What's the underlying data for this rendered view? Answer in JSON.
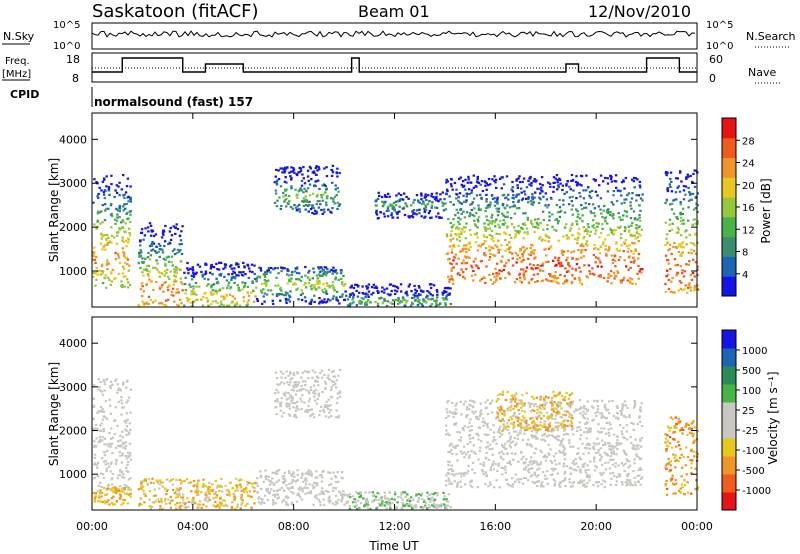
{
  "header": {
    "station": "Saskatoon (fitACF)",
    "beam": "Beam 01",
    "date": "12/Nov/2010"
  },
  "param_panel": {
    "nsky_label": "N.Sky",
    "nsky_ticks": [
      "10^5",
      "10^0"
    ],
    "nsearch_label": "N.Search",
    "nsearch_ticks": [
      "10^5",
      "10^0"
    ],
    "freq_label_line1": "Freq.",
    "freq_label_line2": "[MHz]",
    "freq_ticks": [
      "18",
      "8"
    ],
    "nave_label": "Nave",
    "nave_ticks": [
      "60",
      "0"
    ],
    "cpid_label": "CPID",
    "cpid_value": "normalsound (fast) 157"
  },
  "colors": {
    "power_scale": [
      "#1414e6",
      "#1e64b4",
      "#3c8c6e",
      "#46b446",
      "#96c83c",
      "#e6c81e",
      "#f09628",
      "#f05a1e",
      "#e61414"
    ],
    "velocity_scale": [
      "#e61414",
      "#f05a1e",
      "#f09628",
      "#e6c81e",
      "#c8c8c0",
      "#c8c8c0",
      "#46b446",
      "#2e8b57",
      "#1e64b4",
      "#1414e6"
    ],
    "ground_scatter": "#c8c8c0"
  },
  "chart_data": [
    {
      "type": "heatmap",
      "name": "power",
      "ylabel": "Slant Range [km]",
      "yticks": [
        "1000",
        "2000",
        "3000",
        "4000"
      ],
      "ylim": [
        180,
        4600
      ],
      "xlim": [
        "00:00",
        "24:00"
      ],
      "colorbar_label": "Power [dB]",
      "colorbar_ticks": [
        "28",
        "24",
        "20",
        "16",
        "12",
        "8",
        "4"
      ],
      "colorbar_range": [
        0,
        32
      ],
      "scatter_regions": [
        {
          "t0": 0.0,
          "t1": 1.5,
          "r0": 600,
          "r1": 3200,
          "peak_range": 1300,
          "peak_db": 24
        },
        {
          "t0": 1.8,
          "t1": 3.6,
          "r0": 200,
          "r1": 2100,
          "peak_range": 500,
          "peak_db": 26
        },
        {
          "t0": 3.6,
          "t1": 6.5,
          "r0": 200,
          "r1": 1200,
          "peak_range": 400,
          "peak_db": 22
        },
        {
          "t0": 6.5,
          "t1": 10.0,
          "r0": 250,
          "r1": 1100,
          "peak_range": 700,
          "peak_db": 18
        },
        {
          "t0": 7.2,
          "t1": 9.8,
          "r0": 2300,
          "r1": 3400,
          "peak_range": 2700,
          "peak_db": 14
        },
        {
          "t0": 10.0,
          "t1": 14.2,
          "r0": 200,
          "r1": 700,
          "peak_range": 300,
          "peak_db": 14
        },
        {
          "t0": 11.2,
          "t1": 14.0,
          "r0": 2200,
          "r1": 2800,
          "peak_range": 2500,
          "peak_db": 12
        },
        {
          "t0": 14.0,
          "t1": 21.8,
          "r0": 700,
          "r1": 3200,
          "peak_range": 1100,
          "peak_db": 28
        },
        {
          "t0": 22.7,
          "t1": 24.0,
          "r0": 500,
          "r1": 3300,
          "peak_range": 1000,
          "peak_db": 28
        }
      ]
    },
    {
      "type": "heatmap",
      "name": "velocity",
      "ylabel": "Slant Range [km]",
      "yticks": [
        "1000",
        "2000",
        "3000",
        "4000"
      ],
      "ylim": [
        180,
        4600
      ],
      "xlabel": "Time UT",
      "xticks": [
        "00:00",
        "04:00",
        "08:00",
        "12:00",
        "16:00",
        "20:00",
        "00:00"
      ],
      "xlim": [
        "00:00",
        "24:00"
      ],
      "colorbar_label": "Velocity [m s⁻¹]",
      "colorbar_ticks": [
        "1000",
        "500",
        "100",
        "25",
        "-25",
        "-100",
        "-500",
        "-1000"
      ],
      "colorbar_range": [
        -1000,
        1000
      ],
      "scatter_regions": [
        {
          "t0": 0.0,
          "t1": 1.5,
          "r0": 600,
          "r1": 3200,
          "kind": "ground"
        },
        {
          "t0": 0.0,
          "t1": 1.5,
          "r0": 300,
          "r1": 700,
          "kind": "iono",
          "vel": -400
        },
        {
          "t0": 1.8,
          "t1": 6.5,
          "r0": 200,
          "r1": 900,
          "kind": "iono",
          "vel": -300
        },
        {
          "t0": 6.5,
          "t1": 10.0,
          "r0": 300,
          "r1": 1100,
          "kind": "ground"
        },
        {
          "t0": 7.2,
          "t1": 9.8,
          "r0": 2300,
          "r1": 3400,
          "kind": "ground"
        },
        {
          "t0": 10.0,
          "t1": 14.2,
          "r0": 200,
          "r1": 600,
          "kind": "iono",
          "vel": 150
        },
        {
          "t0": 14.0,
          "t1": 21.8,
          "r0": 700,
          "r1": 2700,
          "kind": "ground"
        },
        {
          "t0": 16.0,
          "t1": 19.0,
          "r0": 2000,
          "r1": 2900,
          "kind": "iono",
          "vel": -350
        },
        {
          "t0": 22.7,
          "t1": 24.0,
          "r0": 500,
          "r1": 2300,
          "kind": "iono",
          "vel": -450
        }
      ]
    }
  ]
}
